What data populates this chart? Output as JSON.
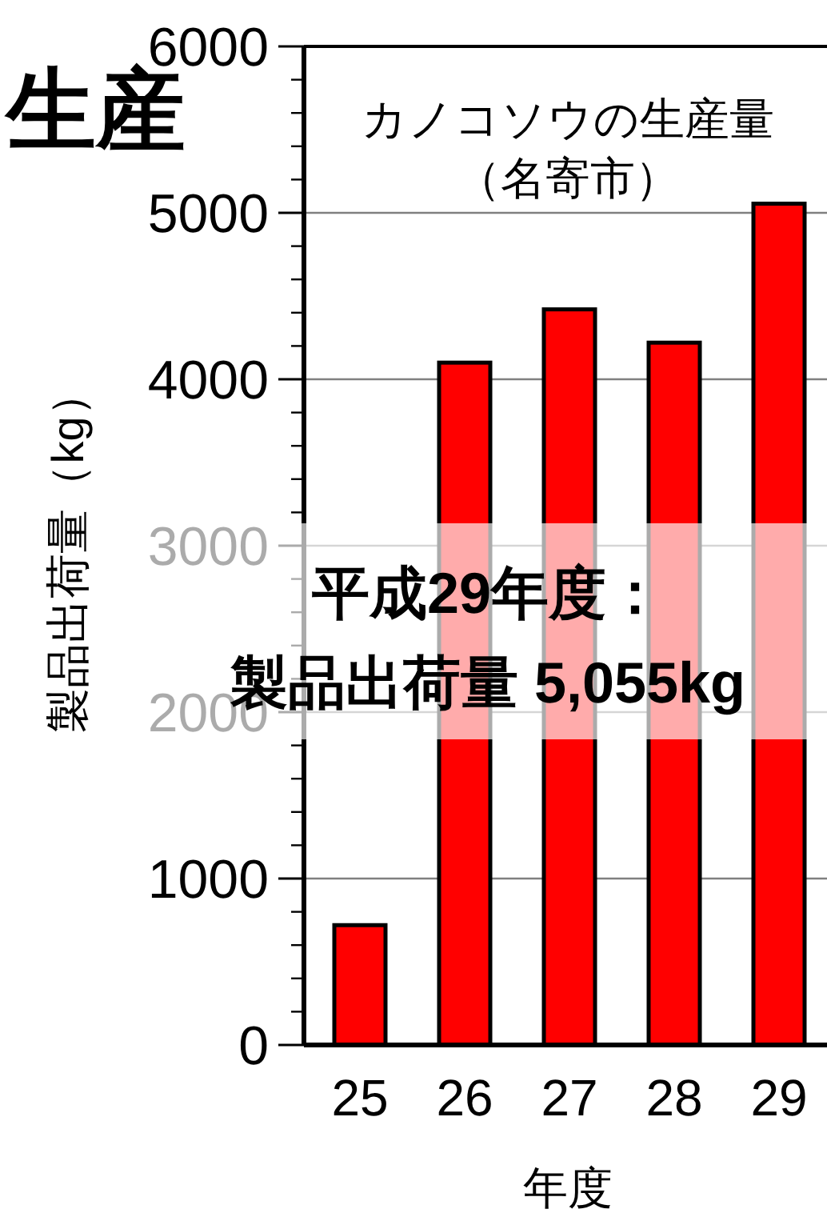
{
  "chart_data": {
    "type": "bar",
    "title": "カノコソウの生産量",
    "subtitle": "（名寄市）",
    "xlabel": "年度",
    "ylabel": "製品出荷量（kg）",
    "categories": [
      "25",
      "26",
      "27",
      "28",
      "29"
    ],
    "values": [
      720,
      4100,
      4420,
      4220,
      5055
    ],
    "color": "#ff0000",
    "ylim": [
      0,
      6000
    ],
    "yticks": [
      0,
      {
        "value": 200,
        "label": null
      },
      {
        "value": 400,
        "label": null
      },
      {
        "value": 600,
        "label": null
      },
      {
        "value": 800,
        "label": null
      },
      1000,
      {
        "value": 1200,
        "label": null
      },
      {
        "value": 1400,
        "label": null
      },
      {
        "value": 1600,
        "label": null
      },
      {
        "value": 1800,
        "label": null
      },
      2000,
      {
        "value": 2200,
        "label": null
      },
      {
        "value": 2400,
        "label": null
      },
      {
        "value": 2600,
        "label": null
      },
      {
        "value": 2800,
        "label": null
      },
      3000,
      {
        "value": 3200,
        "label": null
      },
      {
        "value": 3400,
        "label": null
      },
      {
        "value": 3600,
        "label": null
      },
      {
        "value": 3800,
        "label": null
      },
      4000,
      {
        "value": 4200,
        "label": null
      },
      {
        "value": 4400,
        "label": null
      },
      {
        "value": 4600,
        "label": null
      },
      {
        "value": 4800,
        "label": null
      },
      5000,
      {
        "value": 5200,
        "label": null
      },
      {
        "value": 5400,
        "label": null
      },
      {
        "value": 5600,
        "label": null
      },
      {
        "value": 5800,
        "label": null
      },
      6000
    ],
    "grid": "y",
    "annotations": [
      "生産",
      "平成29年度：",
      "製品出荷量 5,055kg"
    ]
  }
}
